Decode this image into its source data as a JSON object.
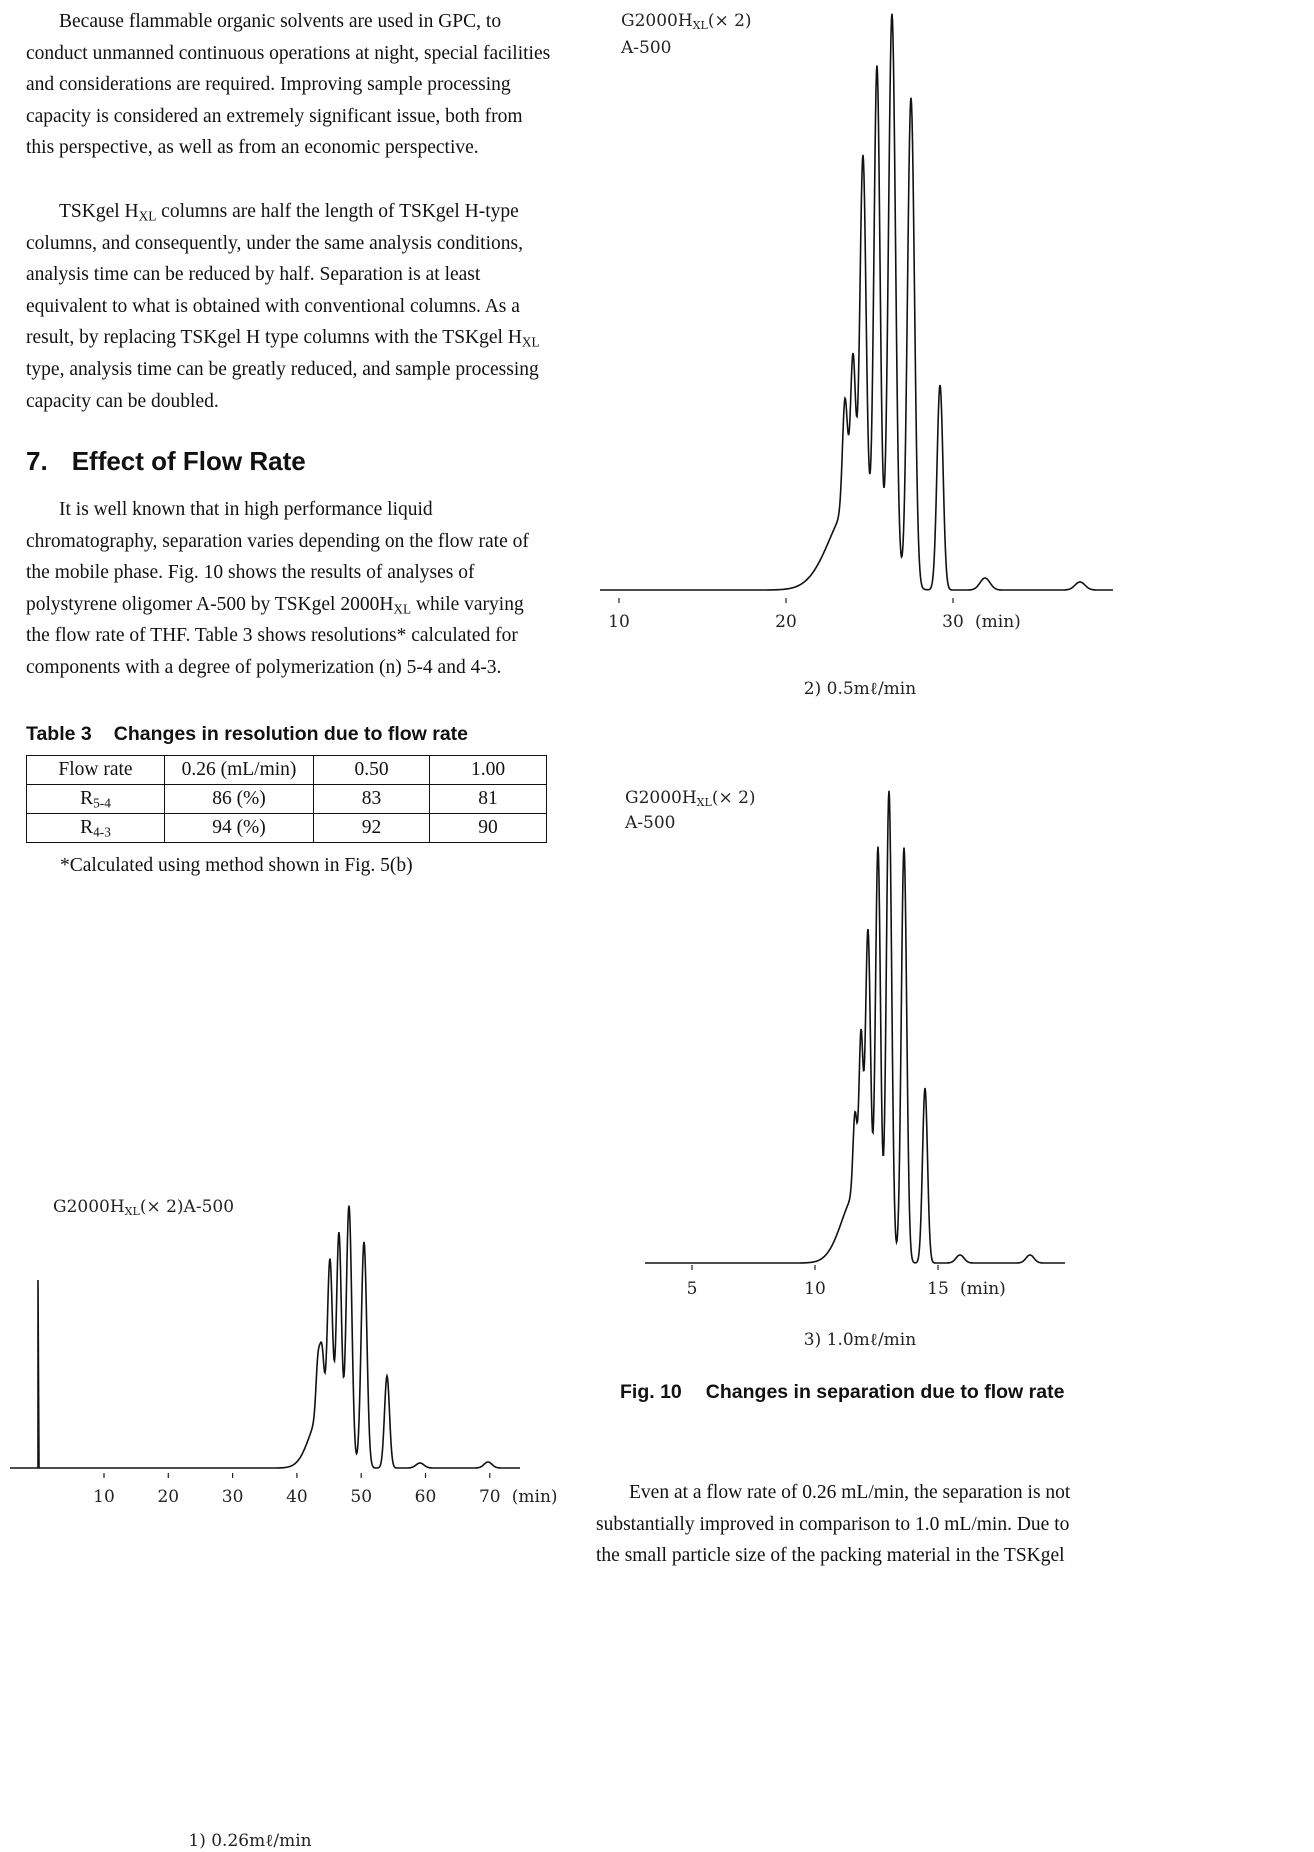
{
  "body": {
    "paragraphs": [
      [
        "Because flammable organic solvents are used in GPC, to conduct unmanned continuous operations at night, special facilities and considerations are required. Improving sample processing capacity is considered an extremely significant issue, both from this perspective, as well as from an economic perspective."
      ],
      [
        "TSKgel H",
        "XL",
        " columns are half the length of TSKgel H-type columns, and consequently, under the same analysis conditions, analysis time can be reduced by half. Separation is at least equivalent to what is obtained with conventional columns. As a result, by replacing TSKgel H type columns with the TSKgel H",
        "XL",
        " type, analysis time can be greatly reduced, and sample processing capacity can be doubled."
      ],
      [
        "It is well known that in high performance liquid chromatography, separation varies depending on the flow rate of the mobile phase. Fig. 10 shows the results of analyses of polystyrene oligomer A-500 by TSKgel 2000H",
        "XL",
        " while varying the flow rate of THF. Table 3 shows resolutions* calculated for components with a degree of polymerization (n) 5-4 and 4-3."
      ],
      [
        "Even at a flow rate of 0.26 mL/min, the separation is not substantially improved in comparison to 1.0 mL/min. Due to the small particle size of the packing material in the TSKgel"
      ]
    ],
    "heading": {
      "number": "7.",
      "title": "Effect of Flow Rate"
    }
  },
  "table": {
    "label": "Table 3",
    "caption": "Changes in resolution due to flow rate",
    "header": [
      "Flow rate",
      "0.26 (mL/min)",
      "0.50",
      "1.00"
    ],
    "rows": [
      [
        [
          "R",
          "5-4"
        ],
        "86 (%)",
        "83",
        "81"
      ],
      [
        [
          "R",
          "4-3"
        ],
        "94 (%)",
        "92",
        "90"
      ]
    ],
    "footnote": "*Calculated using method shown in Fig. 5(b)"
  },
  "figure": {
    "label": "Fig. 10",
    "caption": "Changes in separation due to flow rate",
    "panels": [
      {
        "column": [
          "G2000H",
          "XL",
          "(× 2)",
          "A-500"
        ],
        "ticks": [
          10,
          20,
          30,
          40,
          50,
          60,
          70
        ],
        "unit": "(min)",
        "caption": "1) 0.26mℓ/min"
      },
      {
        "column": [
          "G2000H",
          "XL",
          "(× 2)",
          "A-500"
        ],
        "ticks": [
          10,
          20,
          30
        ],
        "unit": "(min)",
        "caption": "2) 0.5mℓ/min"
      },
      {
        "column": [
          "G2000H",
          "XL",
          "(× 2)",
          "A-500"
        ],
        "ticks": [
          5,
          10,
          15
        ],
        "unit": "(min)",
        "caption": "3) 1.0mℓ/min"
      }
    ]
  }
}
